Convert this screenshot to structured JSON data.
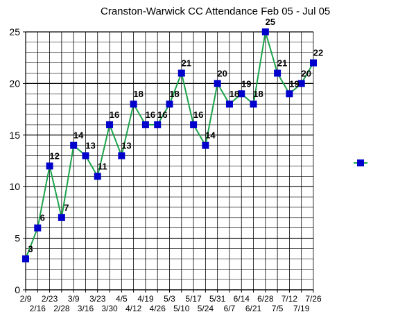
{
  "chart_data": {
    "type": "line",
    "title": "Cranston-Warwick CC Attendance Feb 05 - Jul 05",
    "xlabel": "",
    "ylabel": "",
    "ylim": [
      0,
      25
    ],
    "yticks": [
      0,
      5,
      10,
      15,
      20,
      25
    ],
    "grid": true,
    "legend": "right",
    "categories": [
      "2/9",
      "2/16",
      "2/23",
      "2/28",
      "3/9",
      "3/16",
      "3/23",
      "3/30",
      "4/5",
      "4/12",
      "4/19",
      "4/26",
      "5/3",
      "5/10",
      "5/17",
      "5/24",
      "5/31",
      "6/7",
      "6/14",
      "6/21",
      "6/28",
      "7/5",
      "7/12",
      "7/19",
      "7/26"
    ],
    "series": [
      {
        "values": [
          3,
          6,
          12,
          7,
          14,
          13,
          11,
          16,
          13,
          18,
          16,
          16,
          18,
          21,
          16,
          14,
          20,
          18,
          19,
          18,
          25,
          21,
          19,
          20,
          22
        ],
        "line_color": "#1aa34a",
        "marker_color": "#0000cc"
      }
    ]
  }
}
